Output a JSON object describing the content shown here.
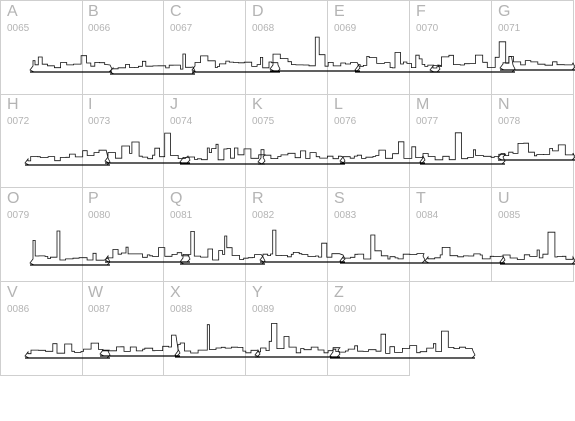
{
  "glyphs": [
    {
      "letter": "A",
      "code": "0065"
    },
    {
      "letter": "B",
      "code": "0066"
    },
    {
      "letter": "C",
      "code": "0067"
    },
    {
      "letter": "D",
      "code": "0068"
    },
    {
      "letter": "E",
      "code": "0069"
    },
    {
      "letter": "F",
      "code": "0070"
    },
    {
      "letter": "G",
      "code": "0071"
    },
    {
      "letter": "H",
      "code": "0072"
    },
    {
      "letter": "I",
      "code": "0073"
    },
    {
      "letter": "J",
      "code": "0074"
    },
    {
      "letter": "K",
      "code": "0075"
    },
    {
      "letter": "L",
      "code": "0076"
    },
    {
      "letter": "M",
      "code": "0077"
    },
    {
      "letter": "N",
      "code": "0078"
    },
    {
      "letter": "O",
      "code": "0079"
    },
    {
      "letter": "P",
      "code": "0080"
    },
    {
      "letter": "Q",
      "code": "0081"
    },
    {
      "letter": "R",
      "code": "0082"
    },
    {
      "letter": "S",
      "code": "0083"
    },
    {
      "letter": "T",
      "code": "0084"
    },
    {
      "letter": "U",
      "code": "0085"
    },
    {
      "letter": "V",
      "code": "0086"
    },
    {
      "letter": "W",
      "code": "0087"
    },
    {
      "letter": "X",
      "code": "0088"
    },
    {
      "letter": "Y",
      "code": "0089"
    },
    {
      "letter": "Z",
      "code": "0090"
    }
  ]
}
